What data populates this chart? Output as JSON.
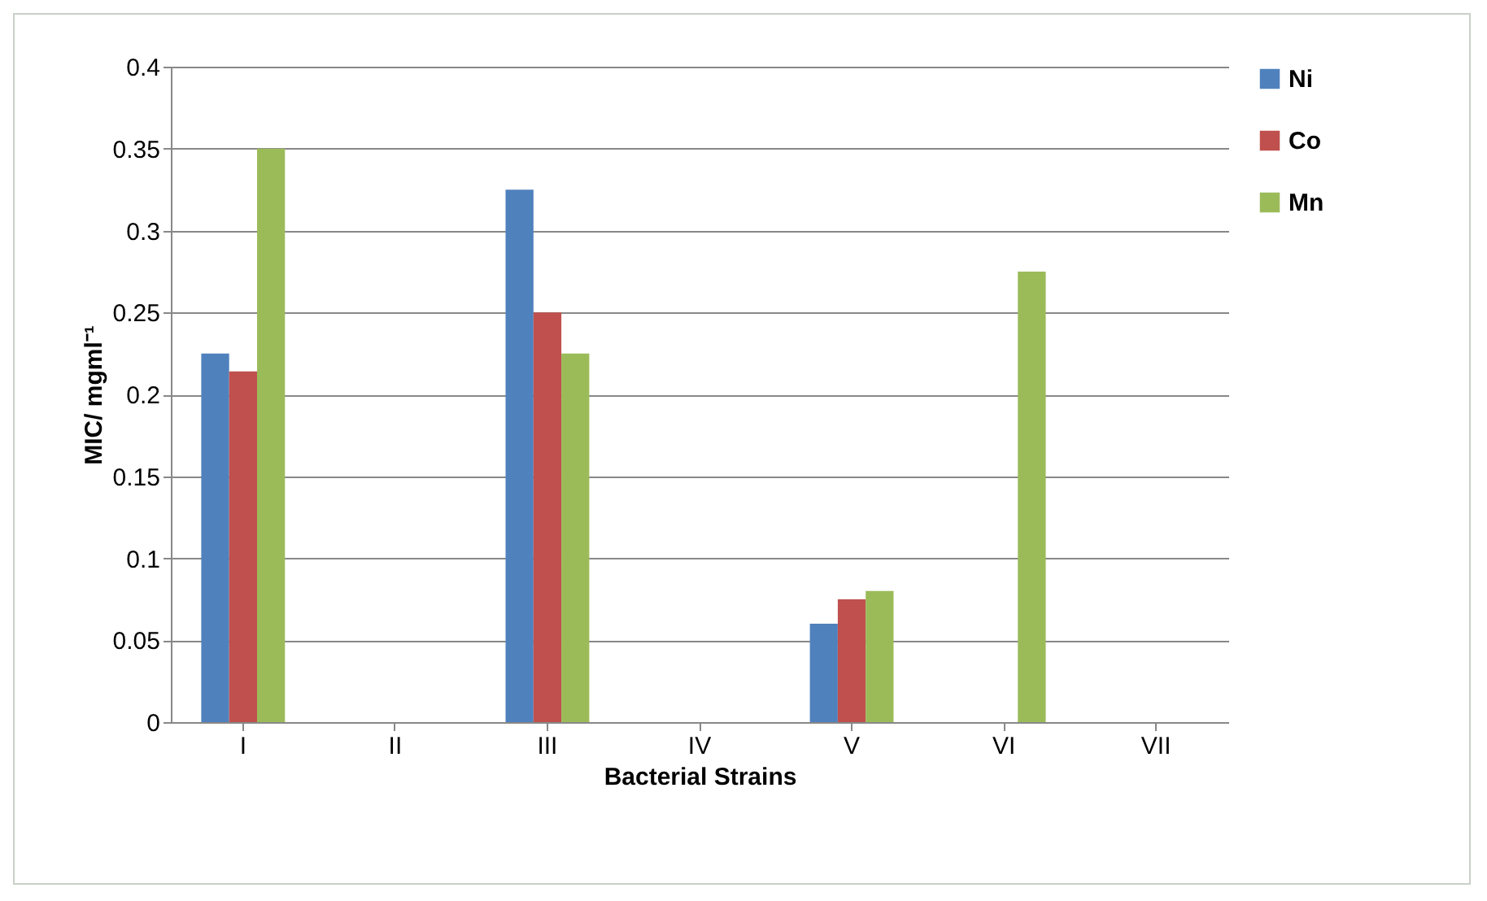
{
  "chart_data": {
    "type": "bar",
    "xlabel": "Bacterial Strains",
    "ylabel": "MIC/ mgml⁻¹",
    "categories": [
      "I",
      "II",
      "III",
      "IV",
      "V",
      "VI",
      "VII"
    ],
    "series": [
      {
        "name": "Ni",
        "color": "#4f81bd",
        "values": [
          0.225,
          null,
          0.325,
          null,
          0.06,
          null,
          null
        ]
      },
      {
        "name": "Co",
        "color": "#c0504d",
        "values": [
          0.214,
          null,
          0.25,
          null,
          0.075,
          null,
          null
        ]
      },
      {
        "name": "Mn",
        "color": "#9bbb59",
        "values": [
          0.35,
          null,
          0.225,
          null,
          0.08,
          0.275,
          null
        ]
      }
    ],
    "ylim": [
      0,
      0.4
    ],
    "yticks": [
      0,
      0.05,
      0.1,
      0.15,
      0.2,
      0.25,
      0.3,
      0.35,
      0.4
    ],
    "grid": "y",
    "legend": "right"
  }
}
